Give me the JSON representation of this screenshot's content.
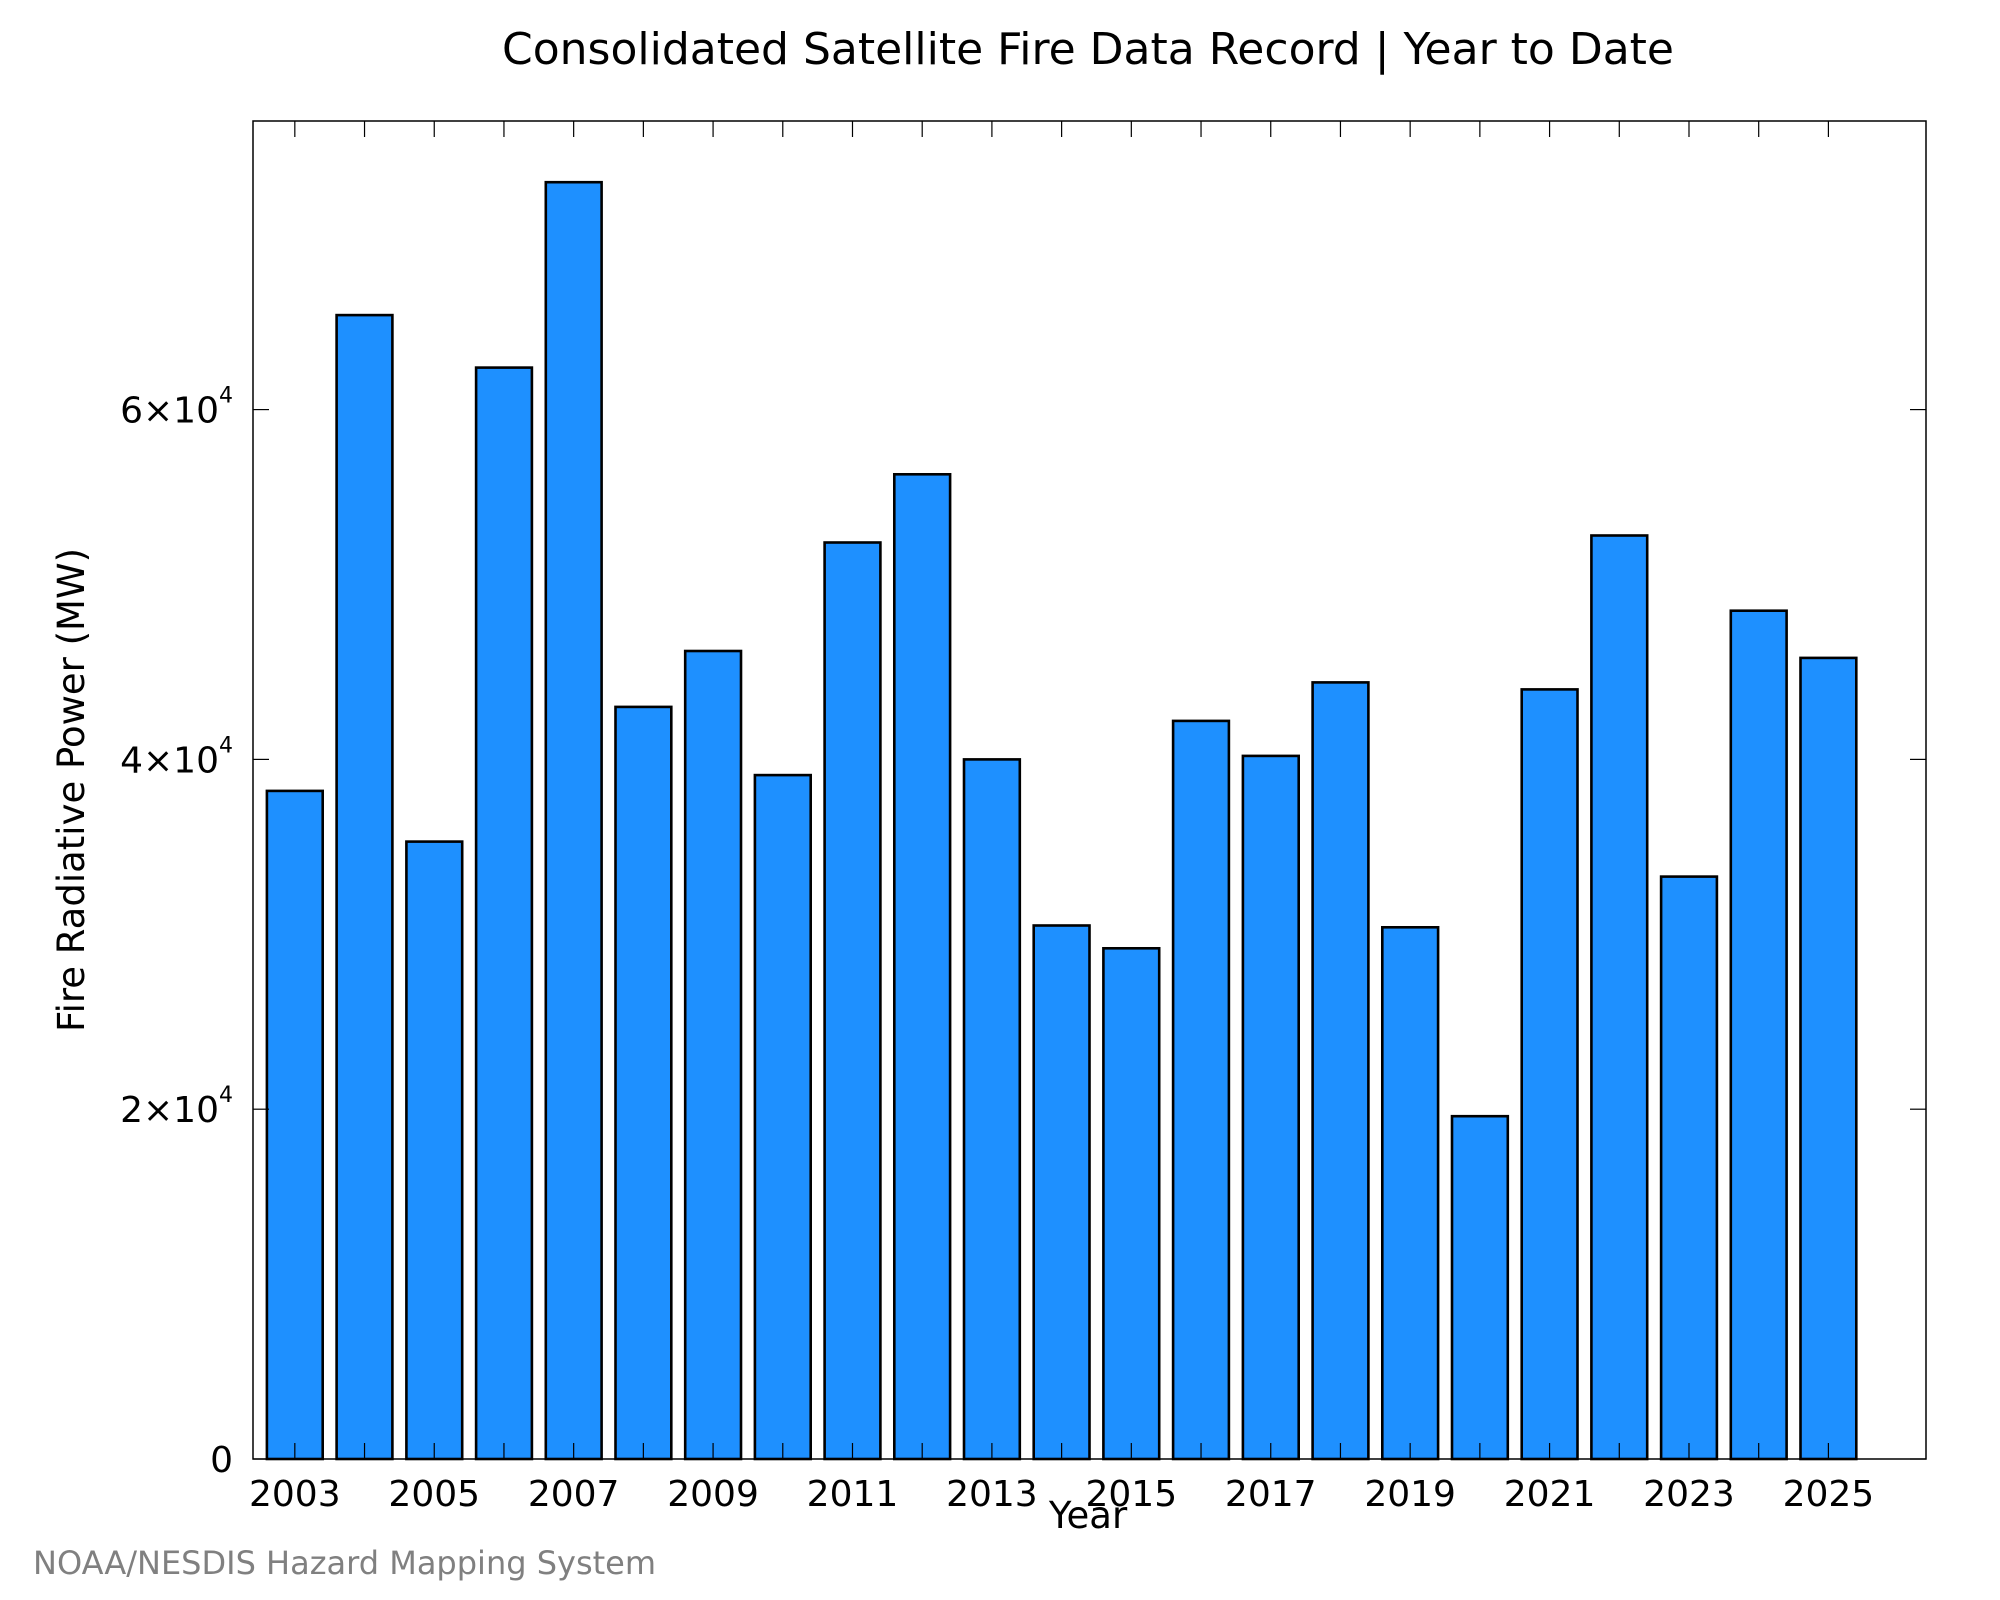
{
  "chart_data": {
    "type": "bar",
    "title": "Consolidated Satellite Fire Data Record | Year to Date",
    "xlabel": "Year",
    "ylabel": "Fire Radiative Power (MW)",
    "categories": [
      "2003",
      "2004",
      "2005",
      "2006",
      "2007",
      "2008",
      "2009",
      "2010",
      "2011",
      "2012",
      "2013",
      "2014",
      "2015",
      "2016",
      "2017",
      "2018",
      "2019",
      "2020",
      "2021",
      "2022",
      "2023",
      "2024",
      "2025"
    ],
    "values": [
      38200,
      65400,
      35300,
      62400,
      73000,
      43000,
      46200,
      39100,
      52400,
      56300,
      40000,
      30500,
      29200,
      42200,
      40200,
      44400,
      30400,
      19600,
      44000,
      52800,
      33300,
      48500,
      45800
    ],
    "x_tick_labels": [
      "2003",
      "2005",
      "2007",
      "2009",
      "2011",
      "2013",
      "2015",
      "2017",
      "2019",
      "2021",
      "2023",
      "2025"
    ],
    "y_ticks": [
      {
        "value": 0,
        "mantissa": "0",
        "exponent": ""
      },
      {
        "value": 20000,
        "mantissa": "2×10",
        "exponent": "4"
      },
      {
        "value": 40000,
        "mantissa": "4×10",
        "exponent": "4"
      },
      {
        "value": 60000,
        "mantissa": "6×10",
        "exponent": "4"
      }
    ],
    "ylim": [
      0,
      76500
    ],
    "xlim": [
      2002.4,
      2026.4
    ],
    "grid": false,
    "legend": "none",
    "bar_color": "#1e90ff",
    "edge_color": "#000000"
  },
  "footer": {
    "credit": "NOAA/NESDIS Hazard Mapping System"
  }
}
